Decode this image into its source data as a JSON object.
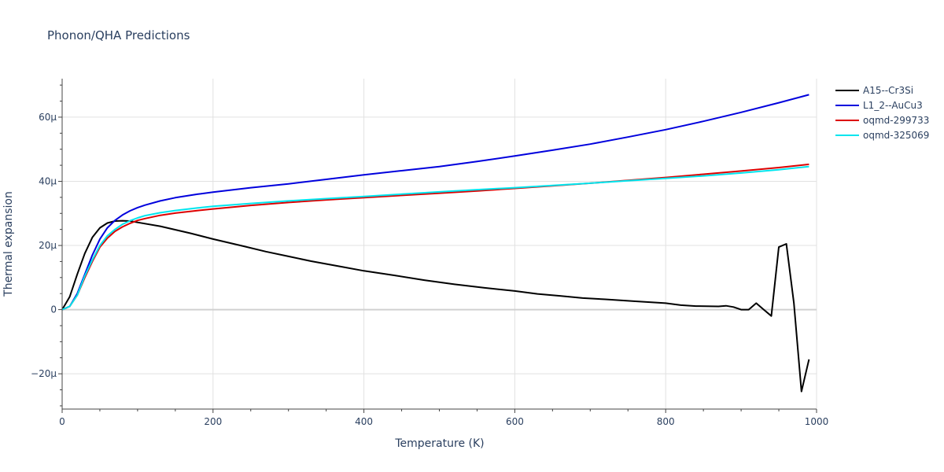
{
  "chart_data": {
    "type": "line",
    "title": "Phonon/QHA Predictions",
    "xlabel": "Temperature (K)",
    "ylabel": "Thermal expansion",
    "xlim": [
      0,
      1000
    ],
    "ylim": [
      -31,
      72
    ],
    "xticks": [
      0,
      200,
      400,
      600,
      800,
      1000
    ],
    "xtick_labels": [
      "0",
      "200",
      "400",
      "600",
      "800",
      "1000"
    ],
    "yticks": [
      -20,
      0,
      20,
      40,
      60
    ],
    "ytick_labels": [
      "−20μ",
      "0",
      "20μ",
      "40μ",
      "60μ"
    ],
    "grid": true,
    "legend": "top-right",
    "series": [
      {
        "name": "A15--Cr3Si",
        "color": "#000000",
        "x": [
          0,
          10,
          20,
          30,
          40,
          50,
          60,
          70,
          80,
          90,
          100,
          130,
          170,
          200,
          240,
          270,
          300,
          330,
          370,
          400,
          440,
          480,
          520,
          560,
          600,
          630,
          660,
          690,
          720,
          760,
          800,
          820,
          840,
          870,
          880,
          890,
          900,
          910,
          920,
          930,
          940,
          950,
          960,
          970,
          980,
          990
        ],
        "values": [
          0,
          4,
          11,
          17.5,
          22.5,
          25.5,
          27,
          27.6,
          27.7,
          27.6,
          27.2,
          26,
          23.8,
          22,
          19.8,
          18.1,
          16.6,
          15.1,
          13.4,
          12.1,
          10.7,
          9.2,
          7.9,
          6.8,
          5.8,
          4.9,
          4.3,
          3.6,
          3.2,
          2.6,
          2.0,
          1.4,
          1.1,
          1.0,
          1.2,
          0.8,
          0,
          0,
          2.0,
          0,
          -2.0,
          19.5,
          20.5,
          2,
          -25.5,
          -15.5
        ]
      },
      {
        "name": "L1_2--AuCu3",
        "color": "#0000dd",
        "x": [
          0,
          10,
          20,
          30,
          40,
          50,
          60,
          70,
          80,
          90,
          100,
          110,
          130,
          150,
          180,
          200,
          250,
          300,
          350,
          400,
          450,
          500,
          550,
          600,
          650,
          700,
          750,
          800,
          850,
          900,
          950,
          990
        ],
        "values": [
          0,
          1,
          5,
          11,
          17,
          22,
          25.5,
          27.8,
          29.5,
          30.8,
          31.8,
          32.6,
          33.9,
          34.9,
          36.0,
          36.6,
          38.0,
          39.2,
          40.6,
          42.0,
          43.3,
          44.6,
          46.2,
          47.9,
          49.7,
          51.6,
          53.8,
          56.1,
          58.7,
          61.5,
          64.5,
          67.0
        ]
      },
      {
        "name": "oqmd-299733",
        "color": "#dd0000",
        "x": [
          0,
          10,
          20,
          30,
          40,
          50,
          60,
          70,
          80,
          90,
          100,
          110,
          130,
          150,
          180,
          200,
          250,
          300,
          350,
          400,
          450,
          500,
          550,
          600,
          650,
          700,
          750,
          800,
          850,
          900,
          950,
          990
        ],
        "values": [
          0,
          1,
          4.5,
          10,
          15,
          19.5,
          22.3,
          24.4,
          25.8,
          26.9,
          27.8,
          28.4,
          29.4,
          30.1,
          30.9,
          31.4,
          32.5,
          33.4,
          34.2,
          34.9,
          35.6,
          36.3,
          37.0,
          37.8,
          38.6,
          39.4,
          40.3,
          41.2,
          42.2,
          43.2,
          44.3,
          45.3
        ]
      },
      {
        "name": "oqmd-325069",
        "color": "#00e5ee",
        "x": [
          0,
          10,
          20,
          30,
          40,
          50,
          60,
          70,
          80,
          90,
          100,
          110,
          130,
          150,
          180,
          200,
          250,
          300,
          350,
          400,
          450,
          500,
          550,
          600,
          650,
          700,
          750,
          800,
          850,
          900,
          950,
          990
        ],
        "values": [
          0,
          1,
          4.5,
          10.5,
          15.5,
          20,
          23,
          25,
          26.6,
          27.7,
          28.6,
          29.3,
          30.2,
          30.9,
          31.7,
          32.2,
          33.1,
          33.9,
          34.6,
          35.3,
          36.0,
          36.7,
          37.4,
          38.0,
          38.7,
          39.4,
          40.2,
          40.9,
          41.7,
          42.6,
          43.6,
          44.6
        ]
      }
    ]
  }
}
